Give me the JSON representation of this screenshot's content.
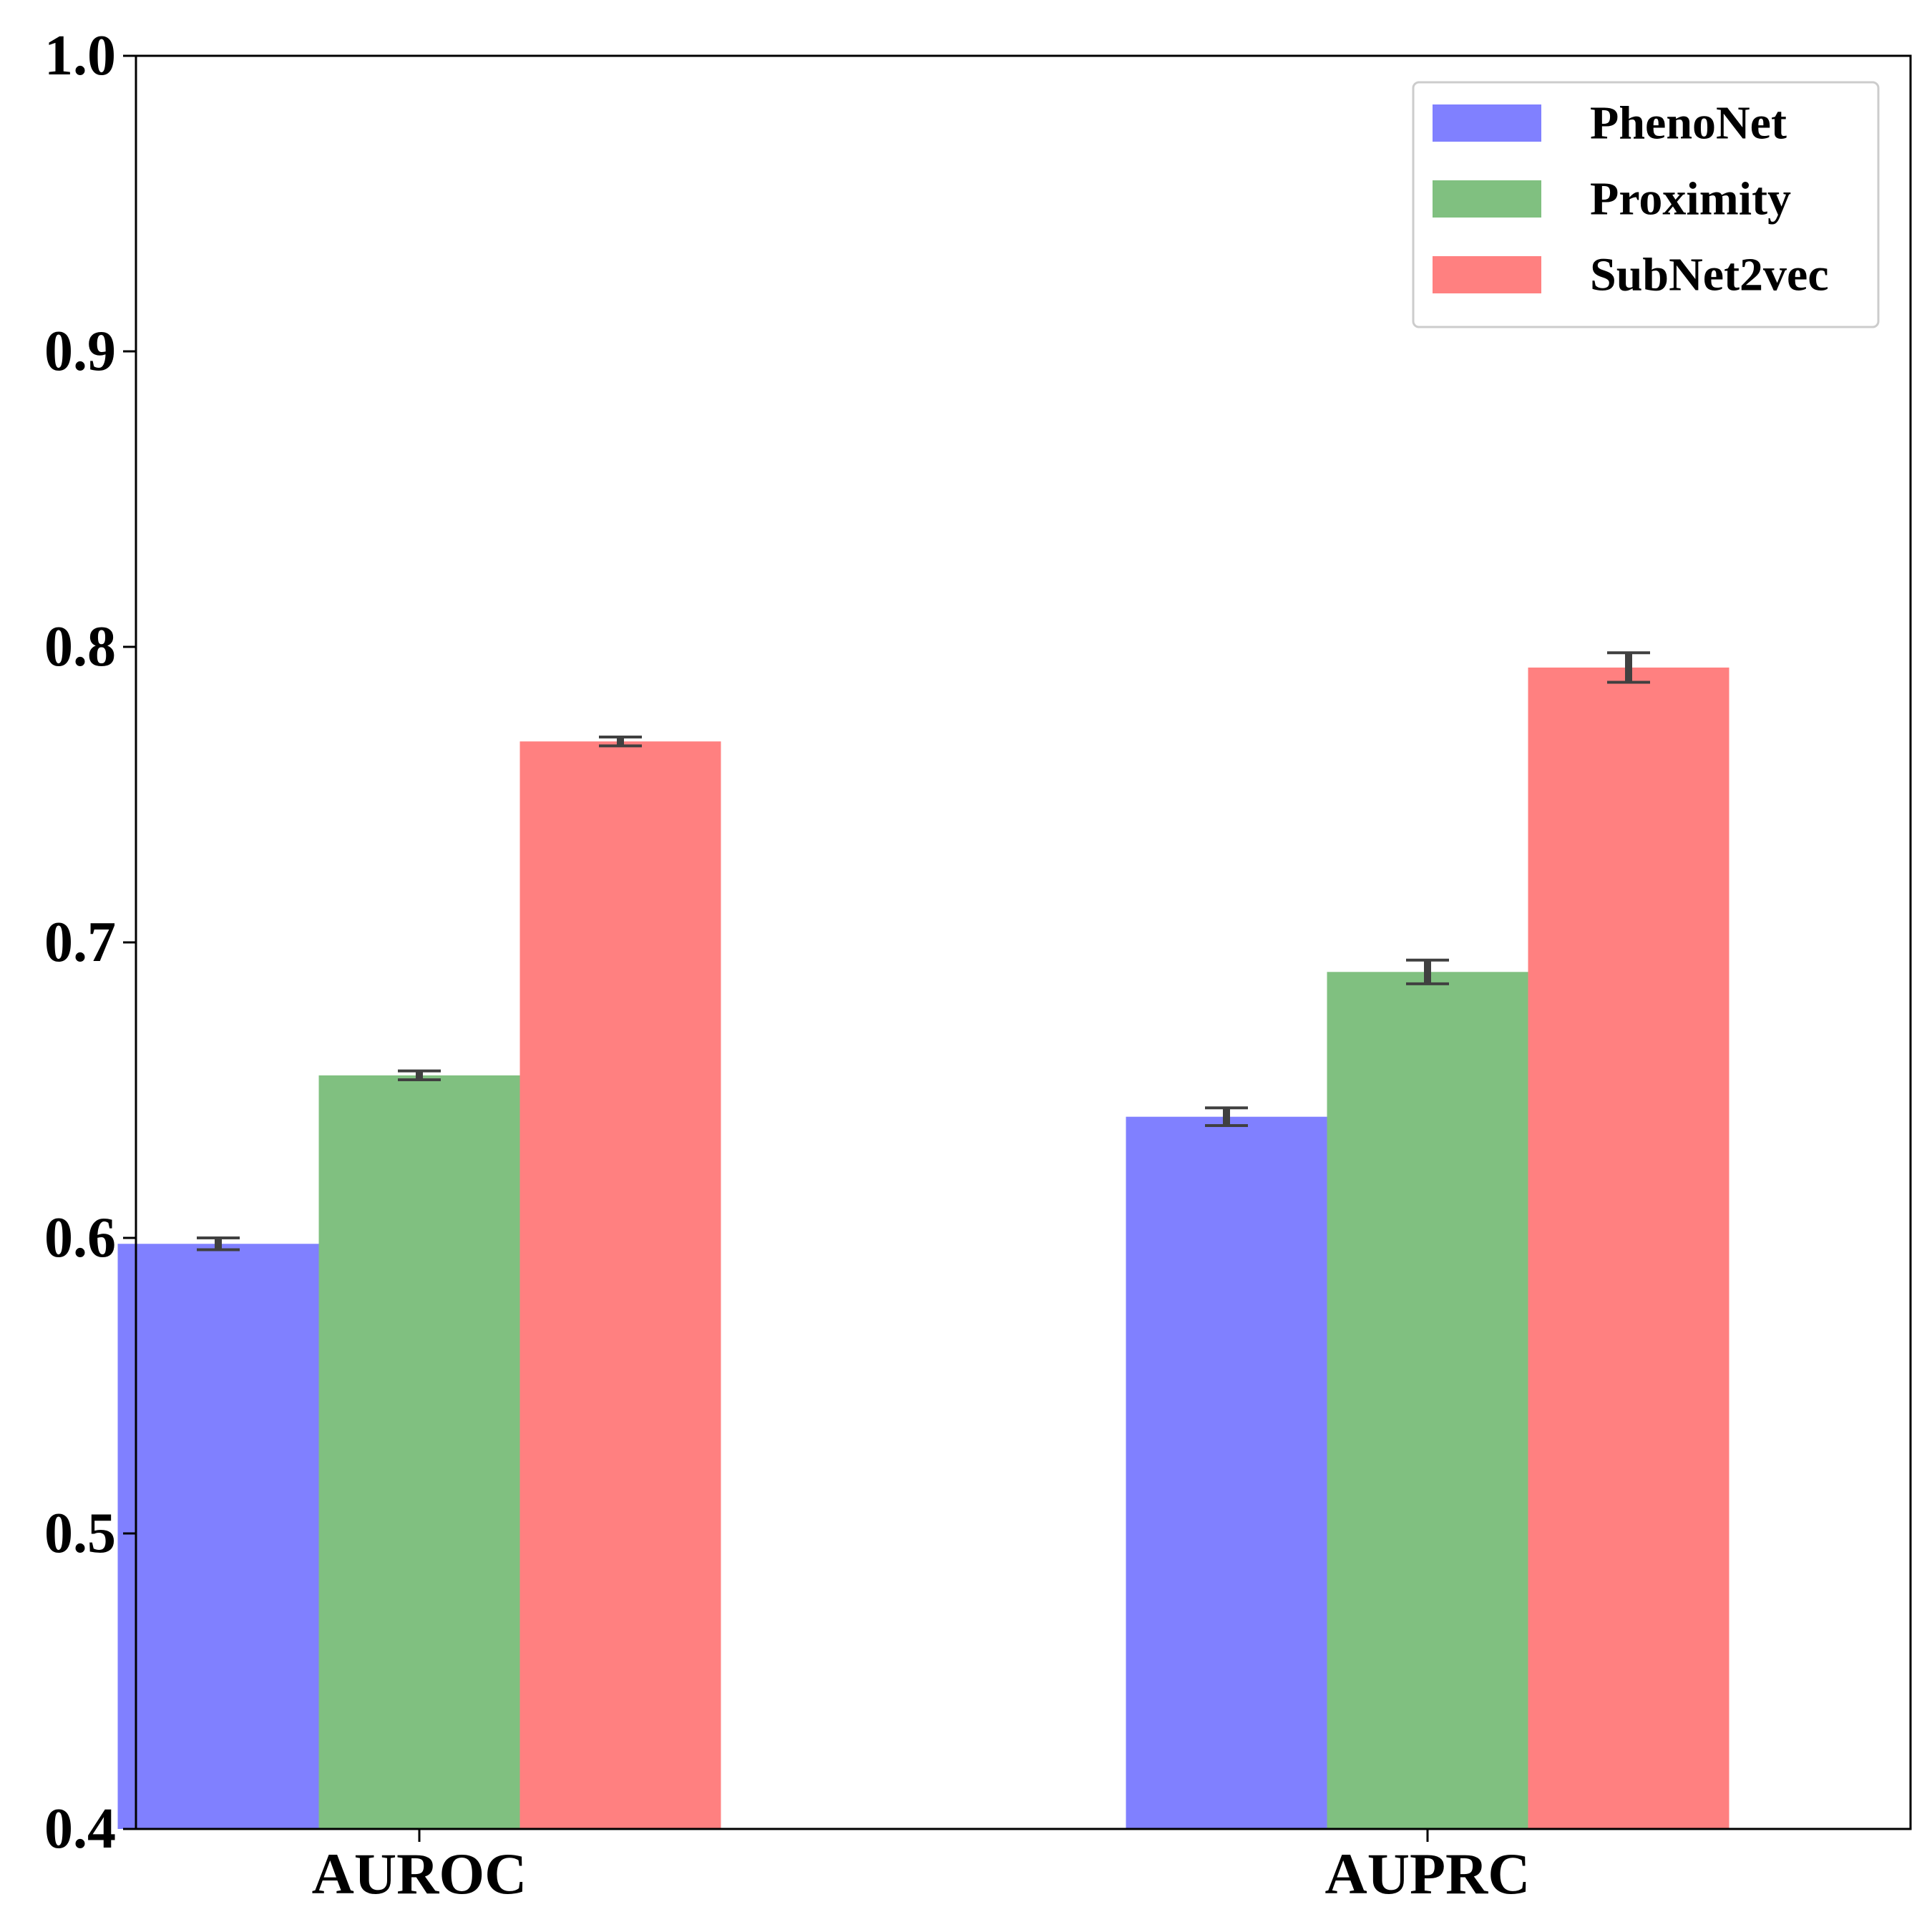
{
  "chart_data": {
    "type": "bar",
    "title": "",
    "xlabel": "",
    "ylabel": "",
    "categories": [
      "AUROC",
      "AUPRC"
    ],
    "ylim": [
      0.4,
      1.0
    ],
    "yticks": [
      "0.4",
      "0.5",
      "0.6",
      "0.7",
      "0.8",
      "0.9",
      "1.0"
    ],
    "grid": false,
    "legend_position": "top-right",
    "series": [
      {
        "name": "PhenoNet",
        "color": "#8080ff",
        "values": [
          0.598,
          0.641
        ],
        "errors": [
          0.002,
          0.003
        ]
      },
      {
        "name": "Proximity",
        "color": "#80c080",
        "values": [
          0.655,
          0.69
        ],
        "errors": [
          0.0015,
          0.004
        ]
      },
      {
        "name": "SubNet2vec",
        "color": "#ff8080",
        "values": [
          0.768,
          0.793
        ],
        "errors": [
          0.0015,
          0.005
        ]
      }
    ],
    "errorbar_color": "#404040"
  }
}
